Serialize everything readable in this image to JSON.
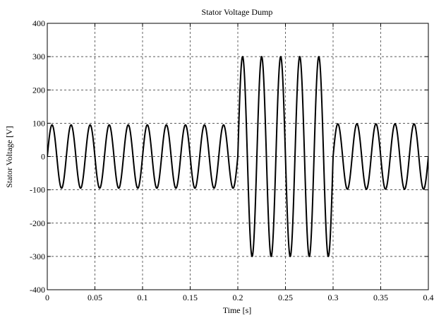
{
  "chart_data": {
    "type": "line",
    "title": "Stator Voltage Dump",
    "xlabel": "Time [s]",
    "ylabel": "Stator Voltage [V]",
    "xlim": [
      0,
      0.4
    ],
    "ylim": [
      -400,
      400
    ],
    "xticks": [
      "0",
      "0.05",
      "0.1",
      "0.15",
      "0.2",
      "0.25",
      "0.3",
      "0.35",
      "0.4"
    ],
    "yticks": [
      "400",
      "300",
      "200",
      "100",
      "0",
      "-100",
      "-200",
      "-300",
      "-400"
    ],
    "grid": true,
    "series": [
      {
        "segments": [
          {
            "t_start": 0.0,
            "t_end": 0.2,
            "amplitude": 95,
            "frequency_hz": 50
          },
          {
            "t_start": 0.2,
            "t_end": 0.3,
            "amplitude": 300,
            "frequency_hz": 50
          },
          {
            "t_start": 0.3,
            "t_end": 0.4,
            "amplitude": 98,
            "frequency_hz": 50
          }
        ]
      }
    ]
  }
}
